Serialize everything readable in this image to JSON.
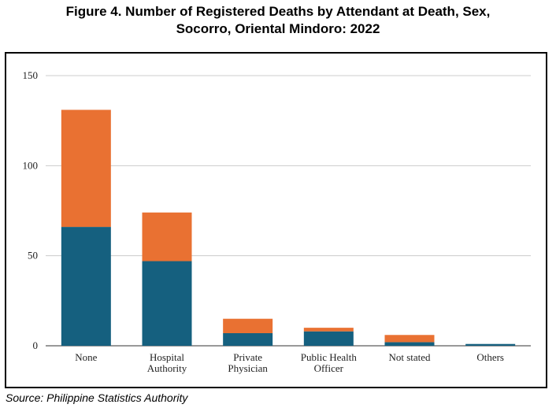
{
  "title_line1": "Figure 4. Number of Registered Deaths by Attendant at Death, Sex,",
  "title_line2": "Socorro, Oriental Mindoro: 2022",
  "source": "Source: Philippine Statistics Authority",
  "chart_data": {
    "type": "bar",
    "stacked": true,
    "title": "Figure 4. Number of Registered Deaths by Attendant at Death, Sex, Socorro, Oriental Mindoro: 2022",
    "categories": [
      [
        "None"
      ],
      [
        "Hospital",
        "Authority"
      ],
      [
        "Private",
        "Physician"
      ],
      [
        "Public Health",
        "Officer"
      ],
      [
        "Not stated"
      ],
      [
        "Others"
      ]
    ],
    "series": [
      {
        "values": [
          66,
          47,
          7,
          8,
          2,
          1
        ],
        "color": "#15607f"
      },
      {
        "values": [
          65,
          27,
          8,
          2,
          4,
          0
        ],
        "color": "#e97132"
      }
    ],
    "ylim": [
      0,
      150
    ],
    "yticks": [
      0,
      50,
      100,
      150
    ],
    "grid": true,
    "legend": "none"
  }
}
